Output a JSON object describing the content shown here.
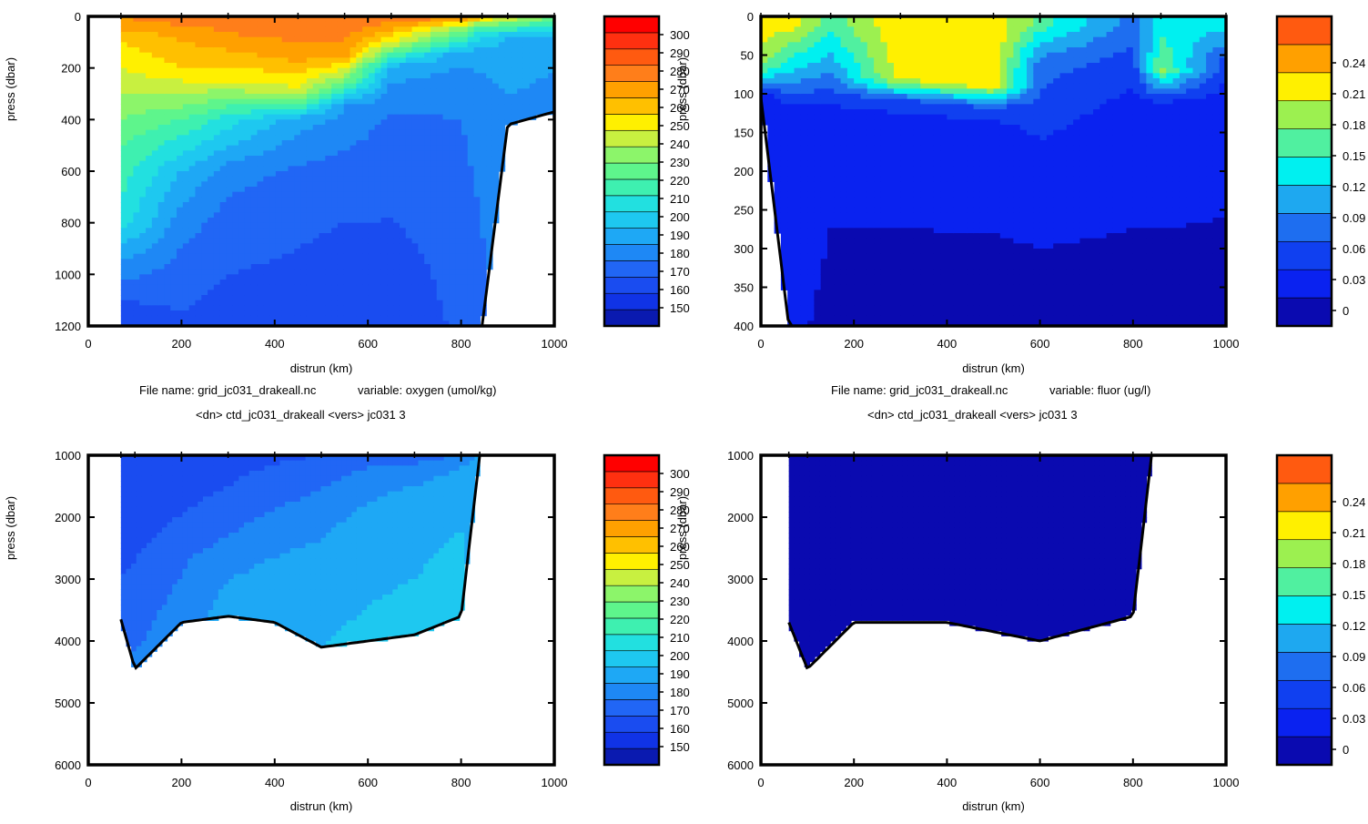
{
  "colors": {
    "oxygen": [
      "#0a1ab0",
      "#1033e6",
      "#1a4cf0",
      "#2166f5",
      "#1e88f5",
      "#1ea8f5",
      "#1ec8f0",
      "#22e0e0",
      "#3ef0b0",
      "#5ef58c",
      "#8cf56a",
      "#c8f040",
      "#fff000",
      "#ffc000",
      "#ffa000",
      "#ff7e1a",
      "#ff5a10",
      "#ff3010",
      "#ff0000"
    ],
    "fluor": [
      "#0a0ab0",
      "#0a22f0",
      "#1040f0",
      "#1e6ef0",
      "#1ea8f0",
      "#00f0f0",
      "#50f0a0",
      "#9cf050",
      "#fff000",
      "#ffa000",
      "#ff5a10"
    ],
    "stroke": "#000000"
  },
  "captions": [
    {
      "file": "File name:  grid_jc031_drakeall.nc",
      "variable": "variable: oxygen (umol/kg)",
      "dn": "<dn>  ctd_jc031_drakeall  <vers>  jc031     3"
    },
    {
      "file": "File name:  grid_jc031_drakeall.nc",
      "variable": "variable: fluor (ug/l)",
      "dn": "<dn>  ctd_jc031_drakeall  <vers>  jc031     3"
    }
  ],
  "chart_data": [
    {
      "type": "heatmap",
      "variable": "oxygen",
      "xlabel": "distrun  (km)",
      "ylabel": "press  (dbar)",
      "xlim": [
        0,
        1000
      ],
      "ylim": [
        1200,
        0
      ],
      "xticks": [
        "0",
        "200",
        "400",
        "600",
        "800",
        "1000"
      ],
      "yticks": [
        "0",
        "200",
        "400",
        "600",
        "800",
        "1000",
        "1200"
      ],
      "colorbar": {
        "labels": [
          "150",
          "160",
          "170",
          "180",
          "190",
          "200",
          "210",
          "220",
          "230",
          "240",
          "250",
          "260",
          "270",
          "280",
          "290",
          "300"
        ],
        "min": 140,
        "max": 310,
        "step": 10
      },
      "columns": [
        {
          "x": 70,
          "bottom": 1200,
          "levels": [
            [
              0,
              290
            ],
            [
              100,
              270
            ],
            [
              500,
              230
            ],
            [
              800,
              215
            ],
            [
              950,
              190
            ],
            [
              1100,
              170
            ],
            [
              1200,
              165
            ]
          ]
        },
        {
          "x": 200,
          "bottom": 1200,
          "levels": [
            [
              0,
              300
            ],
            [
              50,
              285
            ],
            [
              200,
              270
            ],
            [
              400,
              230
            ],
            [
              600,
              200
            ],
            [
              800,
              185
            ],
            [
              1000,
              175
            ],
            [
              1200,
              168
            ]
          ]
        },
        {
          "x": 300,
          "bottom": 1200,
          "levels": [
            [
              0,
              300
            ],
            [
              100,
              285
            ],
            [
              250,
              260
            ],
            [
              400,
              215
            ],
            [
              600,
              185
            ],
            [
              800,
              175
            ],
            [
              1000,
              170
            ],
            [
              1200,
              165
            ]
          ]
        },
        {
          "x": 450,
          "bottom": 1200,
          "levels": [
            [
              0,
              300
            ],
            [
              150,
              285
            ],
            [
              300,
              255
            ],
            [
              400,
              195
            ],
            [
              600,
              178
            ],
            [
              800,
              172
            ],
            [
              1000,
              168
            ],
            [
              1200,
              163
            ]
          ]
        },
        {
          "x": 550,
          "bottom": 1200,
          "levels": [
            [
              0,
              300
            ],
            [
              150,
              285
            ],
            [
              250,
              240
            ],
            [
              350,
              190
            ],
            [
              600,
              175
            ],
            [
              800,
              170
            ],
            [
              1000,
              165
            ],
            [
              1200,
              160
            ]
          ]
        },
        {
          "x": 650,
          "bottom": 1200,
          "levels": [
            [
              0,
              300
            ],
            [
              100,
              260
            ],
            [
              200,
              195
            ],
            [
              400,
              178
            ],
            [
              700,
              172
            ],
            [
              1000,
              165
            ],
            [
              1200,
              162
            ]
          ]
        },
        {
          "x": 800,
          "bottom": 1200,
          "levels": [
            [
              0,
              295
            ],
            [
              50,
              245
            ],
            [
              150,
              192
            ],
            [
              400,
              180
            ],
            [
              800,
              175
            ],
            [
              1200,
              172
            ]
          ]
        },
        {
          "x": 845,
          "bottom": 1200,
          "levels": [
            [
              0,
              280
            ],
            [
              50,
              220
            ],
            [
              150,
              192
            ],
            [
              400,
              185
            ],
            [
              800,
              180
            ],
            [
              1200,
              178
            ]
          ]
        },
        {
          "x": 900,
          "bottom": 420,
          "levels": [
            [
              0,
              260
            ],
            [
              80,
              200
            ],
            [
              200,
              192
            ],
            [
              420,
              188
            ]
          ]
        },
        {
          "x": 1000,
          "bottom": 370,
          "levels": [
            [
              0,
              240
            ],
            [
              70,
              200
            ],
            [
              200,
              190
            ],
            [
              370,
              188
            ]
          ]
        }
      ]
    },
    {
      "type": "heatmap",
      "variable": "fluor",
      "xlabel": "distrun  (km)",
      "ylabel": "press  (dbar)",
      "xlim": [
        0,
        1000
      ],
      "ylim": [
        400,
        0
      ],
      "xticks": [
        "0",
        "200",
        "400",
        "600",
        "800",
        "1000"
      ],
      "yticks": [
        "0",
        "50",
        "100",
        "150",
        "200",
        "250",
        "300",
        "350",
        "400"
      ],
      "colorbar": {
        "labels": [
          "0",
          "0.03",
          "0.06",
          "0.09",
          "0.12",
          "0.15",
          "0.18",
          "0.21",
          "0.24"
        ],
        "min": -0.015,
        "max": 0.285,
        "step": 0.03
      },
      "columns": [
        {
          "x": 0,
          "bottom": 105,
          "levels": [
            [
              10,
              0.24
            ],
            [
              60,
              0.21
            ],
            [
              90,
              0.09
            ],
            [
              105,
              0.02
            ]
          ]
        },
        {
          "x": 60,
          "bottom": 400,
          "levels": [
            [
              10,
              0.24
            ],
            [
              80,
              0.12
            ],
            [
              120,
              0.03
            ],
            [
              400,
              0.02
            ]
          ]
        },
        {
          "x": 150,
          "bottom": 400,
          "levels": [
            [
              10,
              0.18
            ],
            [
              60,
              0.12
            ],
            [
              110,
              0.05
            ],
            [
              140,
              0.02
            ],
            [
              400,
              0.01
            ]
          ]
        },
        {
          "x": 300,
          "bottom": 400,
          "levels": [
            [
              10,
              0.25
            ],
            [
              80,
              0.24
            ],
            [
              110,
              0.06
            ],
            [
              150,
              0.02
            ],
            [
              400,
              0.01
            ]
          ]
        },
        {
          "x": 500,
          "bottom": 400,
          "levels": [
            [
              10,
              0.25
            ],
            [
              90,
              0.24
            ],
            [
              120,
              0.06
            ],
            [
              160,
              0.02
            ],
            [
              400,
              0.01
            ]
          ]
        },
        {
          "x": 600,
          "bottom": 400,
          "levels": [
            [
              10,
              0.18
            ],
            [
              60,
              0.09
            ],
            [
              150,
              0.05
            ],
            [
              200,
              0.02
            ],
            [
              400,
              0.01
            ]
          ]
        },
        {
          "x": 800,
          "bottom": 400,
          "levels": [
            [
              10,
              0.09
            ],
            [
              80,
              0.05
            ],
            [
              150,
              0.02
            ],
            [
              400,
              0.01
            ]
          ]
        },
        {
          "x": 860,
          "bottom": 400,
          "levels": [
            [
              10,
              0.15
            ],
            [
              70,
              0.2
            ],
            [
              110,
              0.05
            ],
            [
              150,
              0.02
            ],
            [
              400,
              0.01
            ]
          ]
        },
        {
          "x": 1000,
          "bottom": 400,
          "levels": [
            [
              10,
              0.15
            ],
            [
              60,
              0.06
            ],
            [
              120,
              0.02
            ],
            [
              400,
              0.01
            ]
          ]
        }
      ]
    },
    {
      "type": "heatmap",
      "variable": "oxygen",
      "xlabel": "distrun  (km)",
      "ylabel": "press  (dbar)",
      "xlim": [
        0,
        1000
      ],
      "ylim": [
        6000,
        1000
      ],
      "xticks": [
        "0",
        "200",
        "400",
        "600",
        "800",
        "1000"
      ],
      "yticks": [
        "1000",
        "2000",
        "3000",
        "4000",
        "5000",
        "6000"
      ],
      "colorbar": {
        "labels": [
          "150",
          "160",
          "170",
          "180",
          "190",
          "200",
          "210",
          "220",
          "230",
          "240",
          "250",
          "260",
          "270",
          "280",
          "290",
          "300"
        ],
        "min": 140,
        "max": 310,
        "step": 10
      },
      "columns": [
        {
          "x": 70,
          "bottom": 3650,
          "levels": [
            [
              1000,
              160
            ],
            [
              2000,
              163
            ],
            [
              3000,
              170
            ],
            [
              3650,
              180
            ]
          ]
        },
        {
          "x": 100,
          "bottom": 4450,
          "levels": [
            [
              1000,
              163
            ],
            [
              2000,
              165
            ],
            [
              3000,
              172
            ],
            [
              4450,
              182
            ]
          ]
        },
        {
          "x": 200,
          "bottom": 3700,
          "levels": [
            [
              1000,
              163
            ],
            [
              1800,
              168
            ],
            [
              2600,
              178
            ],
            [
              3700,
              185
            ]
          ]
        },
        {
          "x": 300,
          "bottom": 3600,
          "levels": [
            [
              1000,
              165
            ],
            [
              1500,
              170
            ],
            [
              2300,
              180
            ],
            [
              3000,
              190
            ],
            [
              3600,
              195
            ]
          ]
        },
        {
          "x": 400,
          "bottom": 3700,
          "levels": [
            [
              1000,
              168
            ],
            [
              1500,
              175
            ],
            [
              2000,
              182
            ],
            [
              2800,
              192
            ],
            [
              3700,
              198
            ]
          ]
        },
        {
          "x": 500,
          "bottom": 4100,
          "levels": [
            [
              1000,
              170
            ],
            [
              1400,
              178
            ],
            [
              2000,
              186
            ],
            [
              2800,
              195
            ],
            [
              4100,
              200
            ]
          ]
        },
        {
          "x": 600,
          "bottom": 4000,
          "levels": [
            [
              1000,
              172
            ],
            [
              1100,
              178
            ],
            [
              1500,
              186
            ],
            [
              2200,
              196
            ],
            [
              4000,
              202
            ]
          ]
        },
        {
          "x": 700,
          "bottom": 3900,
          "levels": [
            [
              1000,
              175
            ],
            [
              1300,
              186
            ],
            [
              1800,
              196
            ],
            [
              3900,
              203
            ]
          ]
        },
        {
          "x": 800,
          "bottom": 3600,
          "levels": [
            [
              1000,
              180
            ],
            [
              1200,
              190
            ],
            [
              1600,
              198
            ],
            [
              3600,
              205
            ]
          ]
        },
        {
          "x": 840,
          "bottom": 1000,
          "levels": [
            [
              1000,
              195
            ]
          ]
        }
      ]
    },
    {
      "type": "heatmap",
      "variable": "fluor",
      "xlabel": "distrun  (km)",
      "ylabel": "press  (dbar)",
      "xlim": [
        0,
        1000
      ],
      "ylim": [
        6000,
        1000
      ],
      "xticks": [
        "0",
        "200",
        "400",
        "600",
        "800",
        "1000"
      ],
      "yticks": [
        "1000",
        "2000",
        "3000",
        "4000",
        "5000",
        "6000"
      ],
      "colorbar": {
        "labels": [
          "0",
          "0.03",
          "0.06",
          "0.09",
          "0.12",
          "0.15",
          "0.18",
          "0.21",
          "0.24"
        ],
        "min": -0.015,
        "max": 0.285,
        "step": 0.03
      },
      "columns": [
        {
          "x": 60,
          "bottom": 3700,
          "levels": [
            [
              1000,
              0.01
            ],
            [
              3700,
              0.01
            ]
          ]
        },
        {
          "x": 100,
          "bottom": 4450,
          "levels": [
            [
              1000,
              0.0
            ],
            [
              2000,
              0.01
            ],
            [
              4450,
              0.01
            ]
          ]
        },
        {
          "x": 200,
          "bottom": 3700,
          "levels": [
            [
              1000,
              0.0
            ],
            [
              1500,
              0.01
            ],
            [
              3700,
              0.01
            ]
          ]
        },
        {
          "x": 400,
          "bottom": 3700,
          "levels": [
            [
              1000,
              0.01
            ],
            [
              3700,
              0.01
            ]
          ]
        },
        {
          "x": 600,
          "bottom": 4000,
          "levels": [
            [
              1000,
              0.01
            ],
            [
              4000,
              0.01
            ]
          ]
        },
        {
          "x": 800,
          "bottom": 3600,
          "levels": [
            [
              1000,
              0.01
            ],
            [
              3600,
              0.01
            ]
          ]
        },
        {
          "x": 840,
          "bottom": 1000,
          "levels": [
            [
              1000,
              0.01
            ]
          ]
        }
      ]
    }
  ]
}
